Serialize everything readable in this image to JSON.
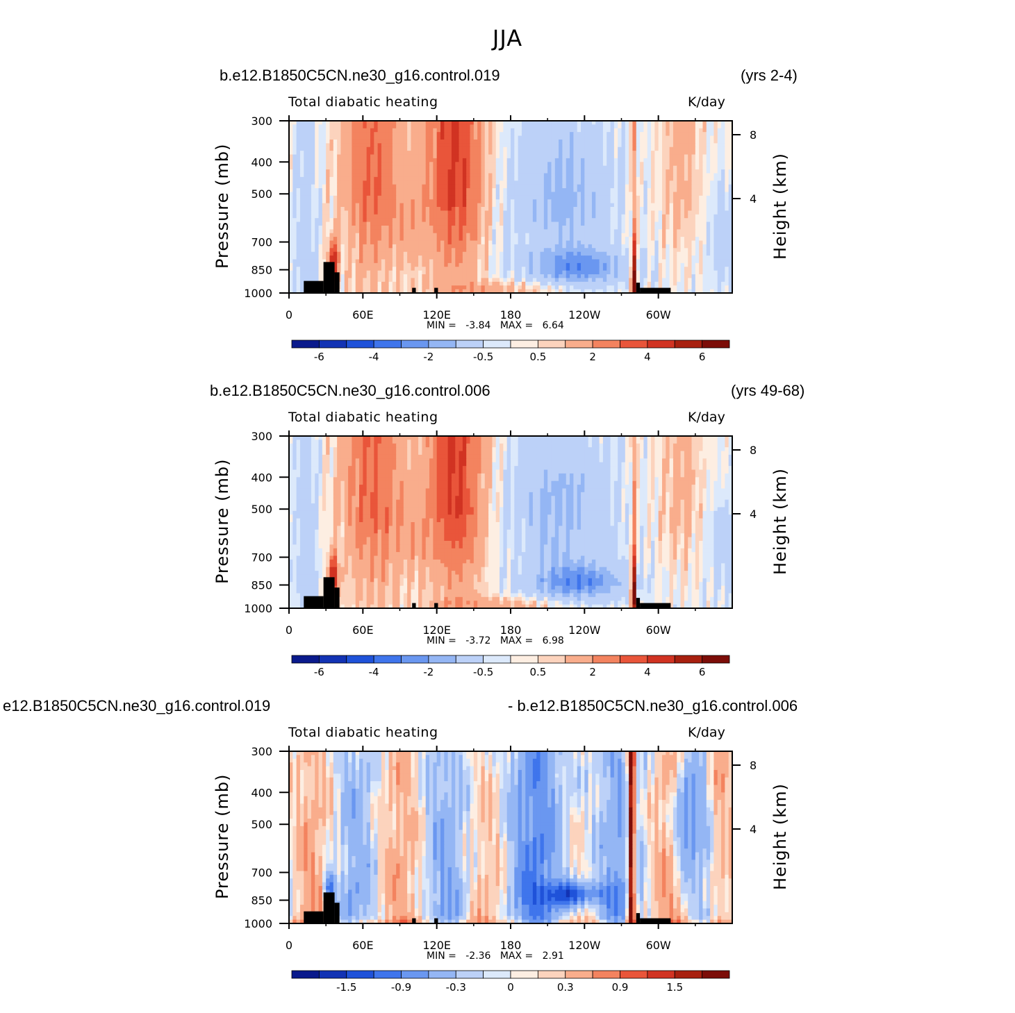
{
  "figure": {
    "title": "JJA"
  },
  "chart_data": [
    {
      "type": "heatmap",
      "case_label": "b.e12.B1850C5CN.ne30_g16.control.019",
      "period_label": "(yrs 2-4)",
      "variable": "Total diabatic heating",
      "units": "K/day",
      "ylabel": "Pressure (mb)",
      "ylabel_right": "Height (km)",
      "x_ticks": [
        "0",
        "60E",
        "120E",
        "180",
        "120W",
        "60W"
      ],
      "y_ticks": [
        "300",
        "400",
        "500",
        "700",
        "850",
        "1000"
      ],
      "height_ticks": [
        "8",
        "4"
      ],
      "min_label": "MIN =",
      "min_value": "-3.84",
      "max_label": "MAX =",
      "max_value": "6.64",
      "colorbar_labels": [
        "-6",
        "-4",
        "-2",
        "-0.5",
        "0.5",
        "2",
        "4",
        "6"
      ],
      "kind": "base"
    },
    {
      "type": "heatmap",
      "case_label": "b.e12.B1850C5CN.ne30_g16.control.006",
      "period_label": "(yrs 49-68)",
      "variable": "Total diabatic heating",
      "units": "K/day",
      "ylabel": "Pressure (mb)",
      "ylabel_right": "Height (km)",
      "x_ticks": [
        "0",
        "60E",
        "120E",
        "180",
        "120W",
        "60W"
      ],
      "y_ticks": [
        "300",
        "400",
        "500",
        "700",
        "850",
        "1000"
      ],
      "height_ticks": [
        "8",
        "4"
      ],
      "min_label": "MIN =",
      "min_value": "-3.72",
      "max_label": "MAX =",
      "max_value": "6.98",
      "colorbar_labels": [
        "-6",
        "-4",
        "-2",
        "-0.5",
        "0.5",
        "2",
        "4",
        "6"
      ],
      "kind": "base2"
    },
    {
      "type": "heatmap",
      "case_label": "e12.B1850C5CN.ne30_g16.control.019",
      "period_label": "- b.e12.B1850C5CN.ne30_g16.control.006",
      "variable": "Total diabatic heating",
      "units": "K/day",
      "ylabel": "Pressure (mb)",
      "ylabel_right": "Height (km)",
      "x_ticks": [
        "0",
        "60E",
        "120E",
        "180",
        "120W",
        "60W"
      ],
      "y_ticks": [
        "300",
        "400",
        "500",
        "700",
        "850",
        "1000"
      ],
      "height_ticks": [
        "8",
        "4"
      ],
      "min_label": "MIN =",
      "min_value": "-2.36",
      "max_label": "MAX =",
      "max_value": "2.91",
      "colorbar_labels": [
        "-1.5",
        "-0.9",
        "-0.3",
        "0",
        "0.3",
        "0.9",
        "1.5"
      ],
      "kind": "diff"
    }
  ],
  "colors": {
    "palette": [
      "#0a1a8c",
      "#1233b4",
      "#1f52d9",
      "#3f75ec",
      "#6a97f0",
      "#94b6f4",
      "#bcd1f8",
      "#dce9fb",
      "#fdeee2",
      "#fcd3bd",
      "#f9ad8c",
      "#f3835f",
      "#e9553a",
      "#d13322",
      "#a8200f",
      "#7c0d08"
    ],
    "topography": "#000000"
  }
}
